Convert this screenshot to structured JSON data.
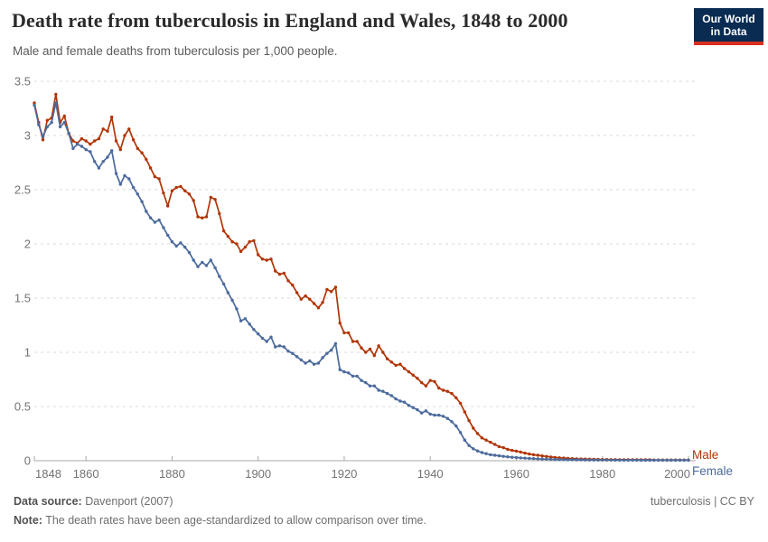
{
  "header": {
    "title": "Death rate from tuberculosis in England and Wales, 1848 to 2000",
    "subtitle": "Male and female deaths from tuberculosis per 1,000 people.",
    "logo_line1": "Our World",
    "logo_line2": "in Data",
    "logo_bg_color": "#0a2b52",
    "logo_accent_color": "#d8301f"
  },
  "footer": {
    "source_label": "Data source:",
    "source_value": " Davenport (2007)",
    "license": "tuberculosis | CC BY",
    "note_label": "Note:",
    "note_value": " The death rates have been age-standardized to allow comparison over time."
  },
  "chart_data": {
    "type": "line",
    "title": "Death rate from tuberculosis in England and Wales, 1848 to 2000",
    "subtitle": "Male and female deaths from tuberculosis per 1,000 people.",
    "xlabel": "",
    "ylabel": "",
    "xlim": [
      1848,
      2000
    ],
    "ylim": [
      0,
      3.5
    ],
    "x_ticks": [
      1848,
      1860,
      1880,
      1900,
      1920,
      1940,
      1960,
      1980,
      2000
    ],
    "y_ticks": [
      0,
      0.5,
      1,
      1.5,
      2,
      2.5,
      3,
      3.5
    ],
    "grid": "horizontal-dashed",
    "legend_position": "end-of-line",
    "markers": true,
    "colors": {
      "grid": "#d9d9d9",
      "axis": "#a8a8a8",
      "tick_text": "#737373"
    },
    "x": [
      1848,
      1849,
      1850,
      1851,
      1852,
      1853,
      1854,
      1855,
      1856,
      1857,
      1858,
      1859,
      1860,
      1861,
      1862,
      1863,
      1864,
      1865,
      1866,
      1867,
      1868,
      1869,
      1870,
      1871,
      1872,
      1873,
      1874,
      1875,
      1876,
      1877,
      1878,
      1879,
      1880,
      1881,
      1882,
      1883,
      1884,
      1885,
      1886,
      1887,
      1888,
      1889,
      1890,
      1891,
      1892,
      1893,
      1894,
      1895,
      1896,
      1897,
      1898,
      1899,
      1900,
      1901,
      1902,
      1903,
      1904,
      1905,
      1906,
      1907,
      1908,
      1909,
      1910,
      1911,
      1912,
      1913,
      1914,
      1915,
      1916,
      1917,
      1918,
      1919,
      1920,
      1921,
      1922,
      1923,
      1924,
      1925,
      1926,
      1927,
      1928,
      1929,
      1930,
      1931,
      1932,
      1933,
      1934,
      1935,
      1936,
      1937,
      1938,
      1939,
      1940,
      1941,
      1942,
      1943,
      1944,
      1945,
      1946,
      1947,
      1948,
      1949,
      1950,
      1951,
      1952,
      1953,
      1954,
      1955,
      1956,
      1957,
      1958,
      1959,
      1960,
      1961,
      1962,
      1963,
      1964,
      1965,
      1966,
      1967,
      1968,
      1969,
      1970,
      1971,
      1972,
      1973,
      1974,
      1975,
      1976,
      1977,
      1978,
      1979,
      1980,
      1981,
      1982,
      1983,
      1984,
      1985,
      1986,
      1987,
      1988,
      1989,
      1990,
      1991,
      1992,
      1993,
      1994,
      1995,
      1996,
      1997,
      1998,
      1999,
      2000
    ],
    "series": [
      {
        "name": "Male",
        "color": "#B13507",
        "values": [
          3.3,
          3.12,
          2.96,
          3.14,
          3.16,
          3.38,
          3.12,
          3.18,
          3.02,
          2.95,
          2.93,
          2.97,
          2.95,
          2.92,
          2.95,
          2.97,
          3.06,
          3.04,
          3.17,
          2.95,
          2.87,
          3.0,
          3.06,
          2.96,
          2.88,
          2.84,
          2.78,
          2.7,
          2.62,
          2.6,
          2.47,
          2.35,
          2.49,
          2.52,
          2.53,
          2.49,
          2.46,
          2.4,
          2.25,
          2.24,
          2.25,
          2.43,
          2.41,
          2.28,
          2.12,
          2.07,
          2.02,
          2.0,
          1.93,
          1.97,
          2.02,
          2.03,
          1.9,
          1.86,
          1.85,
          1.86,
          1.75,
          1.72,
          1.73,
          1.66,
          1.62,
          1.55,
          1.49,
          1.52,
          1.49,
          1.45,
          1.41,
          1.46,
          1.58,
          1.56,
          1.6,
          1.27,
          1.18,
          1.18,
          1.1,
          1.1,
          1.04,
          1.0,
          1.03,
          0.97,
          1.06,
          1.0,
          0.94,
          0.91,
          0.88,
          0.89,
          0.85,
          0.82,
          0.79,
          0.76,
          0.72,
          0.69,
          0.74,
          0.73,
          0.67,
          0.65,
          0.64,
          0.62,
          0.58,
          0.53,
          0.45,
          0.37,
          0.3,
          0.25,
          0.21,
          0.19,
          0.17,
          0.15,
          0.13,
          0.12,
          0.105,
          0.095,
          0.088,
          0.08,
          0.07,
          0.062,
          0.055,
          0.05,
          0.044,
          0.039,
          0.034,
          0.03,
          0.027,
          0.024,
          0.021,
          0.019,
          0.017,
          0.016,
          0.015,
          0.014,
          0.013,
          0.012,
          0.011,
          0.011,
          0.01,
          0.01,
          0.009,
          0.009,
          0.009,
          0.008,
          0.008,
          0.008,
          0.008,
          0.008,
          0.007,
          0.007,
          0.007,
          0.007,
          0.007,
          0.007,
          0.007,
          0.007,
          0.007
        ]
      },
      {
        "name": "Female",
        "color": "#4C6A9C",
        "values": [
          3.28,
          3.1,
          2.99,
          3.08,
          3.12,
          3.3,
          3.08,
          3.12,
          3.02,
          2.88,
          2.92,
          2.9,
          2.87,
          2.85,
          2.76,
          2.7,
          2.76,
          2.8,
          2.86,
          2.65,
          2.55,
          2.63,
          2.6,
          2.52,
          2.46,
          2.39,
          2.3,
          2.24,
          2.2,
          2.22,
          2.15,
          2.08,
          2.02,
          1.98,
          2.01,
          1.97,
          1.92,
          1.85,
          1.79,
          1.83,
          1.8,
          1.85,
          1.78,
          1.7,
          1.63,
          1.55,
          1.48,
          1.4,
          1.29,
          1.31,
          1.26,
          1.21,
          1.17,
          1.13,
          1.1,
          1.14,
          1.05,
          1.06,
          1.05,
          1.01,
          0.99,
          0.96,
          0.93,
          0.9,
          0.92,
          0.89,
          0.9,
          0.95,
          0.99,
          1.02,
          1.08,
          0.84,
          0.82,
          0.81,
          0.78,
          0.78,
          0.74,
          0.72,
          0.69,
          0.69,
          0.65,
          0.64,
          0.62,
          0.6,
          0.57,
          0.55,
          0.54,
          0.51,
          0.49,
          0.47,
          0.44,
          0.46,
          0.43,
          0.42,
          0.42,
          0.41,
          0.39,
          0.36,
          0.32,
          0.26,
          0.19,
          0.14,
          0.11,
          0.09,
          0.075,
          0.065,
          0.055,
          0.05,
          0.045,
          0.04,
          0.036,
          0.032,
          0.029,
          0.026,
          0.023,
          0.021,
          0.019,
          0.017,
          0.015,
          0.014,
          0.013,
          0.012,
          0.011,
          0.01,
          0.009,
          0.009,
          0.008,
          0.008,
          0.007,
          0.007,
          0.007,
          0.006,
          0.006,
          0.006,
          0.006,
          0.005,
          0.005,
          0.005,
          0.005,
          0.005,
          0.005,
          0.004,
          0.004,
          0.004,
          0.004,
          0.004,
          0.004,
          0.004,
          0.004,
          0.004,
          0.004,
          0.004,
          0.004
        ]
      }
    ]
  }
}
